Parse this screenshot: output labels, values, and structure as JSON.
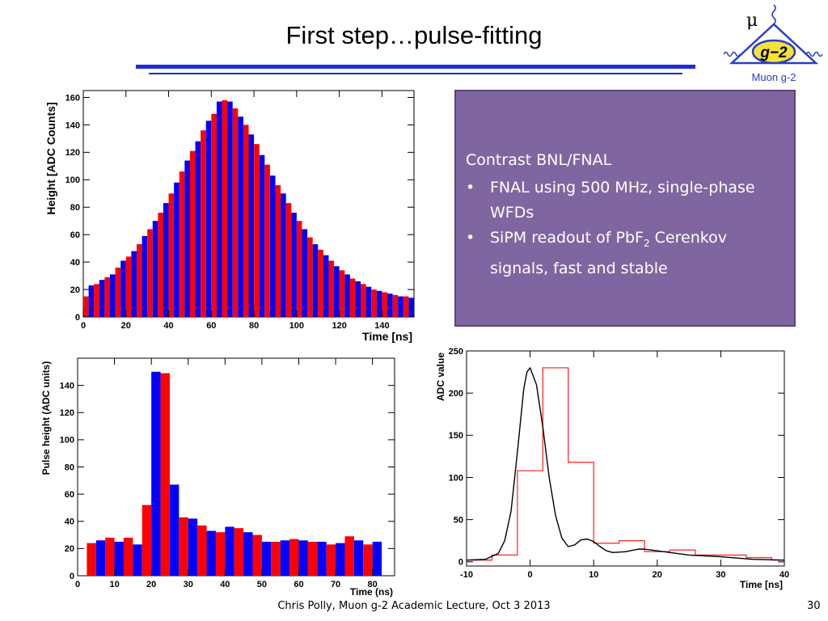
{
  "slide": {
    "title": "First step…pulse-fitting",
    "footer": "Chris Polly, Muon g-2 Academic Lecture, Oct 3 2013",
    "page_number": "30"
  },
  "logo": {
    "mu": "μ",
    "badge": "g−2",
    "caption": "Muon g-2",
    "accent": "#2a3ec8",
    "badge_fill": "#f5e23a"
  },
  "infobox": {
    "heading": "Contrast BNL/FNAL",
    "bullets": [
      {
        "text": "FNAL using 500 MHz, single-phase WFDs"
      },
      {
        "text_before": "SiPM readout of PbF",
        "subscript": "2",
        "text_after": " Cerenkov signals, fast and stable"
      }
    ]
  },
  "colors": {
    "red": "#ff0000",
    "blue": "#0000ff",
    "fit": "#000000",
    "step": "#ff3030"
  },
  "chart_data": [
    {
      "type": "bar",
      "xlabel": "Time [ns]",
      "ylabel": "Height [ADC Counts]",
      "xlim": [
        0,
        155
      ],
      "ylim": [
        0,
        165
      ],
      "xticks": [
        0,
        20,
        40,
        60,
        80,
        100,
        120,
        140
      ],
      "yticks": [
        0,
        20,
        40,
        60,
        80,
        100,
        120,
        140,
        160
      ],
      "bin_width": 2.5,
      "x_start": 0,
      "color_alternation": [
        "red",
        "blue"
      ],
      "values": [
        15,
        23,
        24,
        27,
        29,
        31,
        36,
        41,
        44,
        48,
        53,
        59,
        64,
        70,
        76,
        83,
        90,
        98,
        106,
        114,
        121,
        128,
        136,
        143,
        148,
        157,
        158,
        157,
        152,
        146,
        140,
        133,
        126,
        118,
        111,
        103,
        96,
        90,
        83,
        76,
        70,
        64,
        58,
        53,
        49,
        45,
        41,
        37,
        34,
        31,
        28,
        26,
        24,
        22,
        20,
        19,
        18,
        17,
        16,
        15,
        15,
        14
      ]
    },
    {
      "type": "bar",
      "xlabel": "Time (ns)",
      "ylabel": "Pulse height (ADC units)",
      "xlim": [
        0,
        86
      ],
      "ylim": [
        0,
        160
      ],
      "xticks": [
        0,
        10,
        20,
        30,
        40,
        50,
        60,
        70,
        80
      ],
      "yticks": [
        0,
        20,
        40,
        60,
        80,
        100,
        120,
        140
      ],
      "bin_width": 2.5,
      "x_start": 2.5,
      "color_alternation": [
        "red",
        "blue"
      ],
      "values": [
        24,
        26,
        28,
        25,
        28,
        23,
        52,
        150,
        149,
        67,
        43,
        42,
        37,
        33,
        32,
        36,
        35,
        32,
        30,
        25,
        25,
        26,
        27,
        26,
        25,
        25,
        23,
        24,
        29,
        26,
        23,
        25
      ]
    },
    {
      "type": "line",
      "xlabel": "Time [ns]",
      "ylabel": "ADC value",
      "xlim": [
        -10,
        40
      ],
      "ylim": [
        -5,
        250
      ],
      "xticks": [
        -10,
        0,
        10,
        20,
        30,
        40
      ],
      "yticks": [
        0,
        50,
        100,
        150,
        200,
        250
      ],
      "series": [
        {
          "kind": "step",
          "x": [
            -10,
            -6,
            -2,
            2,
            6,
            10,
            14,
            18,
            22,
            26,
            30,
            34,
            38,
            40
          ],
          "y": [
            2,
            8,
            108,
            230,
            118,
            22,
            25,
            12,
            14,
            8,
            8,
            5,
            2,
            2
          ]
        },
        {
          "kind": "smooth",
          "x": [
            -10,
            -7,
            -5,
            -4,
            -3,
            -2,
            -1,
            -0.5,
            0,
            1,
            2,
            3,
            4,
            5,
            6,
            7,
            8,
            9,
            10,
            11,
            12,
            13,
            15,
            17,
            18,
            20,
            22,
            25,
            30,
            35,
            40
          ],
          "y": [
            2,
            3,
            10,
            25,
            60,
            130,
            205,
            225,
            230,
            210,
            160,
            100,
            55,
            28,
            18,
            20,
            26,
            27,
            24,
            18,
            13,
            11,
            12,
            15,
            15,
            13,
            11,
            8,
            6,
            3,
            2
          ]
        }
      ]
    }
  ]
}
